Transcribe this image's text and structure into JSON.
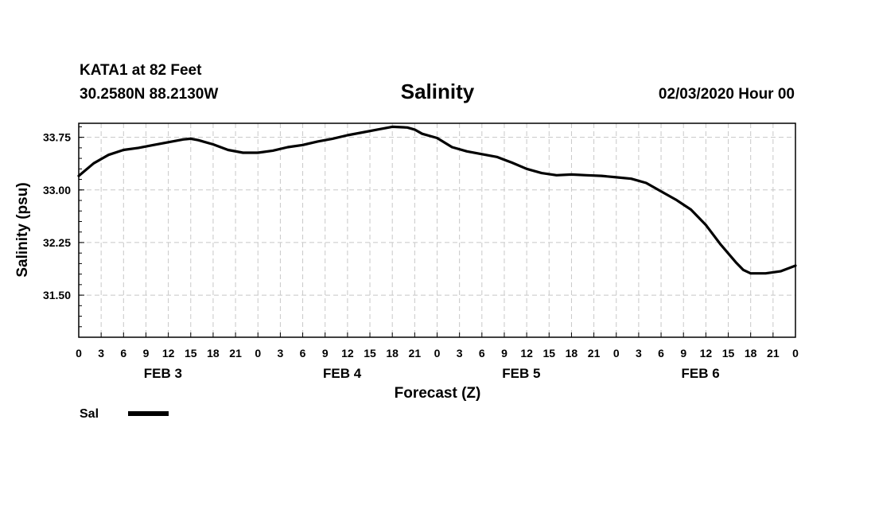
{
  "header": {
    "station": "KATA1 at 82 Feet",
    "location": "30.2580N 88.2130W",
    "title": "Salinity",
    "run": "02/03/2020 Hour 00"
  },
  "chart_data": {
    "type": "line",
    "title": "Salinity",
    "xlabel": "Forecast (Z)",
    "ylabel": "Salinity (psu)",
    "xlim": [
      0,
      96
    ],
    "ylim": [
      30.9,
      33.95
    ],
    "y_ticks": [
      "31.50",
      "32.25",
      "33.00",
      "33.75"
    ],
    "x_tick_labels": [
      "0",
      "3",
      "6",
      "9",
      "12",
      "15",
      "18",
      "21",
      "0",
      "3",
      "6",
      "9",
      "12",
      "15",
      "18",
      "21",
      "0",
      "3",
      "6",
      "9",
      "12",
      "15",
      "18",
      "21",
      "0",
      "3",
      "6",
      "9",
      "12",
      "15",
      "18",
      "21",
      "0"
    ],
    "day_labels": [
      "FEB 3",
      "FEB 4",
      "FEB 5",
      "FEB 6"
    ],
    "grid": true,
    "legend_position": "bottom-left",
    "series": [
      {
        "name": "Sal",
        "color": "#000000",
        "x": [
          0,
          2,
          4,
          6,
          8,
          10,
          12,
          14,
          15,
          16,
          18,
          20,
          22,
          24,
          26,
          28,
          30,
          32,
          34,
          36,
          38,
          40,
          42,
          44,
          45,
          46,
          48,
          50,
          52,
          54,
          56,
          58,
          60,
          62,
          64,
          66,
          68,
          70,
          72,
          74,
          76,
          78,
          80,
          82,
          84,
          86,
          88,
          89,
          90,
          92,
          94,
          96
        ],
        "values": [
          33.2,
          33.38,
          33.5,
          33.57,
          33.6,
          33.64,
          33.68,
          33.72,
          33.73,
          33.71,
          33.65,
          33.57,
          33.53,
          33.53,
          33.56,
          33.61,
          33.64,
          33.69,
          33.73,
          33.78,
          33.82,
          33.86,
          33.9,
          33.89,
          33.86,
          33.8,
          33.74,
          33.61,
          33.55,
          33.51,
          33.47,
          33.39,
          33.3,
          33.24,
          33.21,
          33.22,
          33.21,
          33.2,
          33.18,
          33.16,
          33.1,
          32.98,
          32.86,
          32.72,
          32.5,
          32.22,
          31.97,
          31.86,
          31.81,
          31.81,
          31.84,
          31.92
        ]
      }
    ]
  }
}
